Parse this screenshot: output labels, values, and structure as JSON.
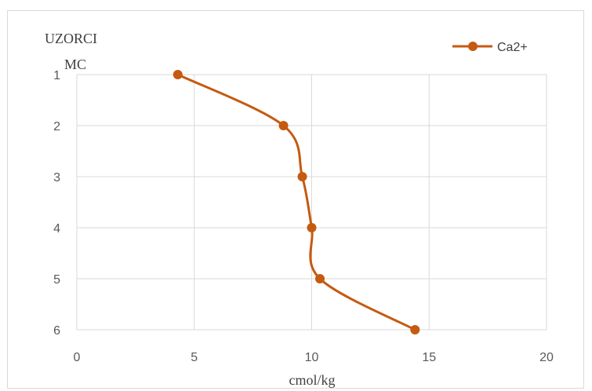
{
  "chart_data": {
    "type": "line",
    "ylabel_lines": [
      "UZORCI",
      "MC"
    ],
    "xlabel": "cmol/kg",
    "xlim": [
      0,
      20
    ],
    "x_ticks": [
      0,
      5,
      10,
      15,
      20
    ],
    "y_categories": [
      "1",
      "2",
      "3",
      "4",
      "5",
      "6"
    ],
    "y_orientation": "top-to-bottom",
    "grid": true,
    "legend_position": "top-right",
    "series": [
      {
        "name": "Ca2+",
        "color": "#c55a11",
        "marker": "circle",
        "smooth": true,
        "points": [
          {
            "sample": "1",
            "value": 4.3
          },
          {
            "sample": "2",
            "value": 8.8
          },
          {
            "sample": "3",
            "value": 9.6
          },
          {
            "sample": "4",
            "value": 10.0
          },
          {
            "sample": "5",
            "value": 10.35
          },
          {
            "sample": "6",
            "value": 14.4
          }
        ]
      }
    ]
  }
}
